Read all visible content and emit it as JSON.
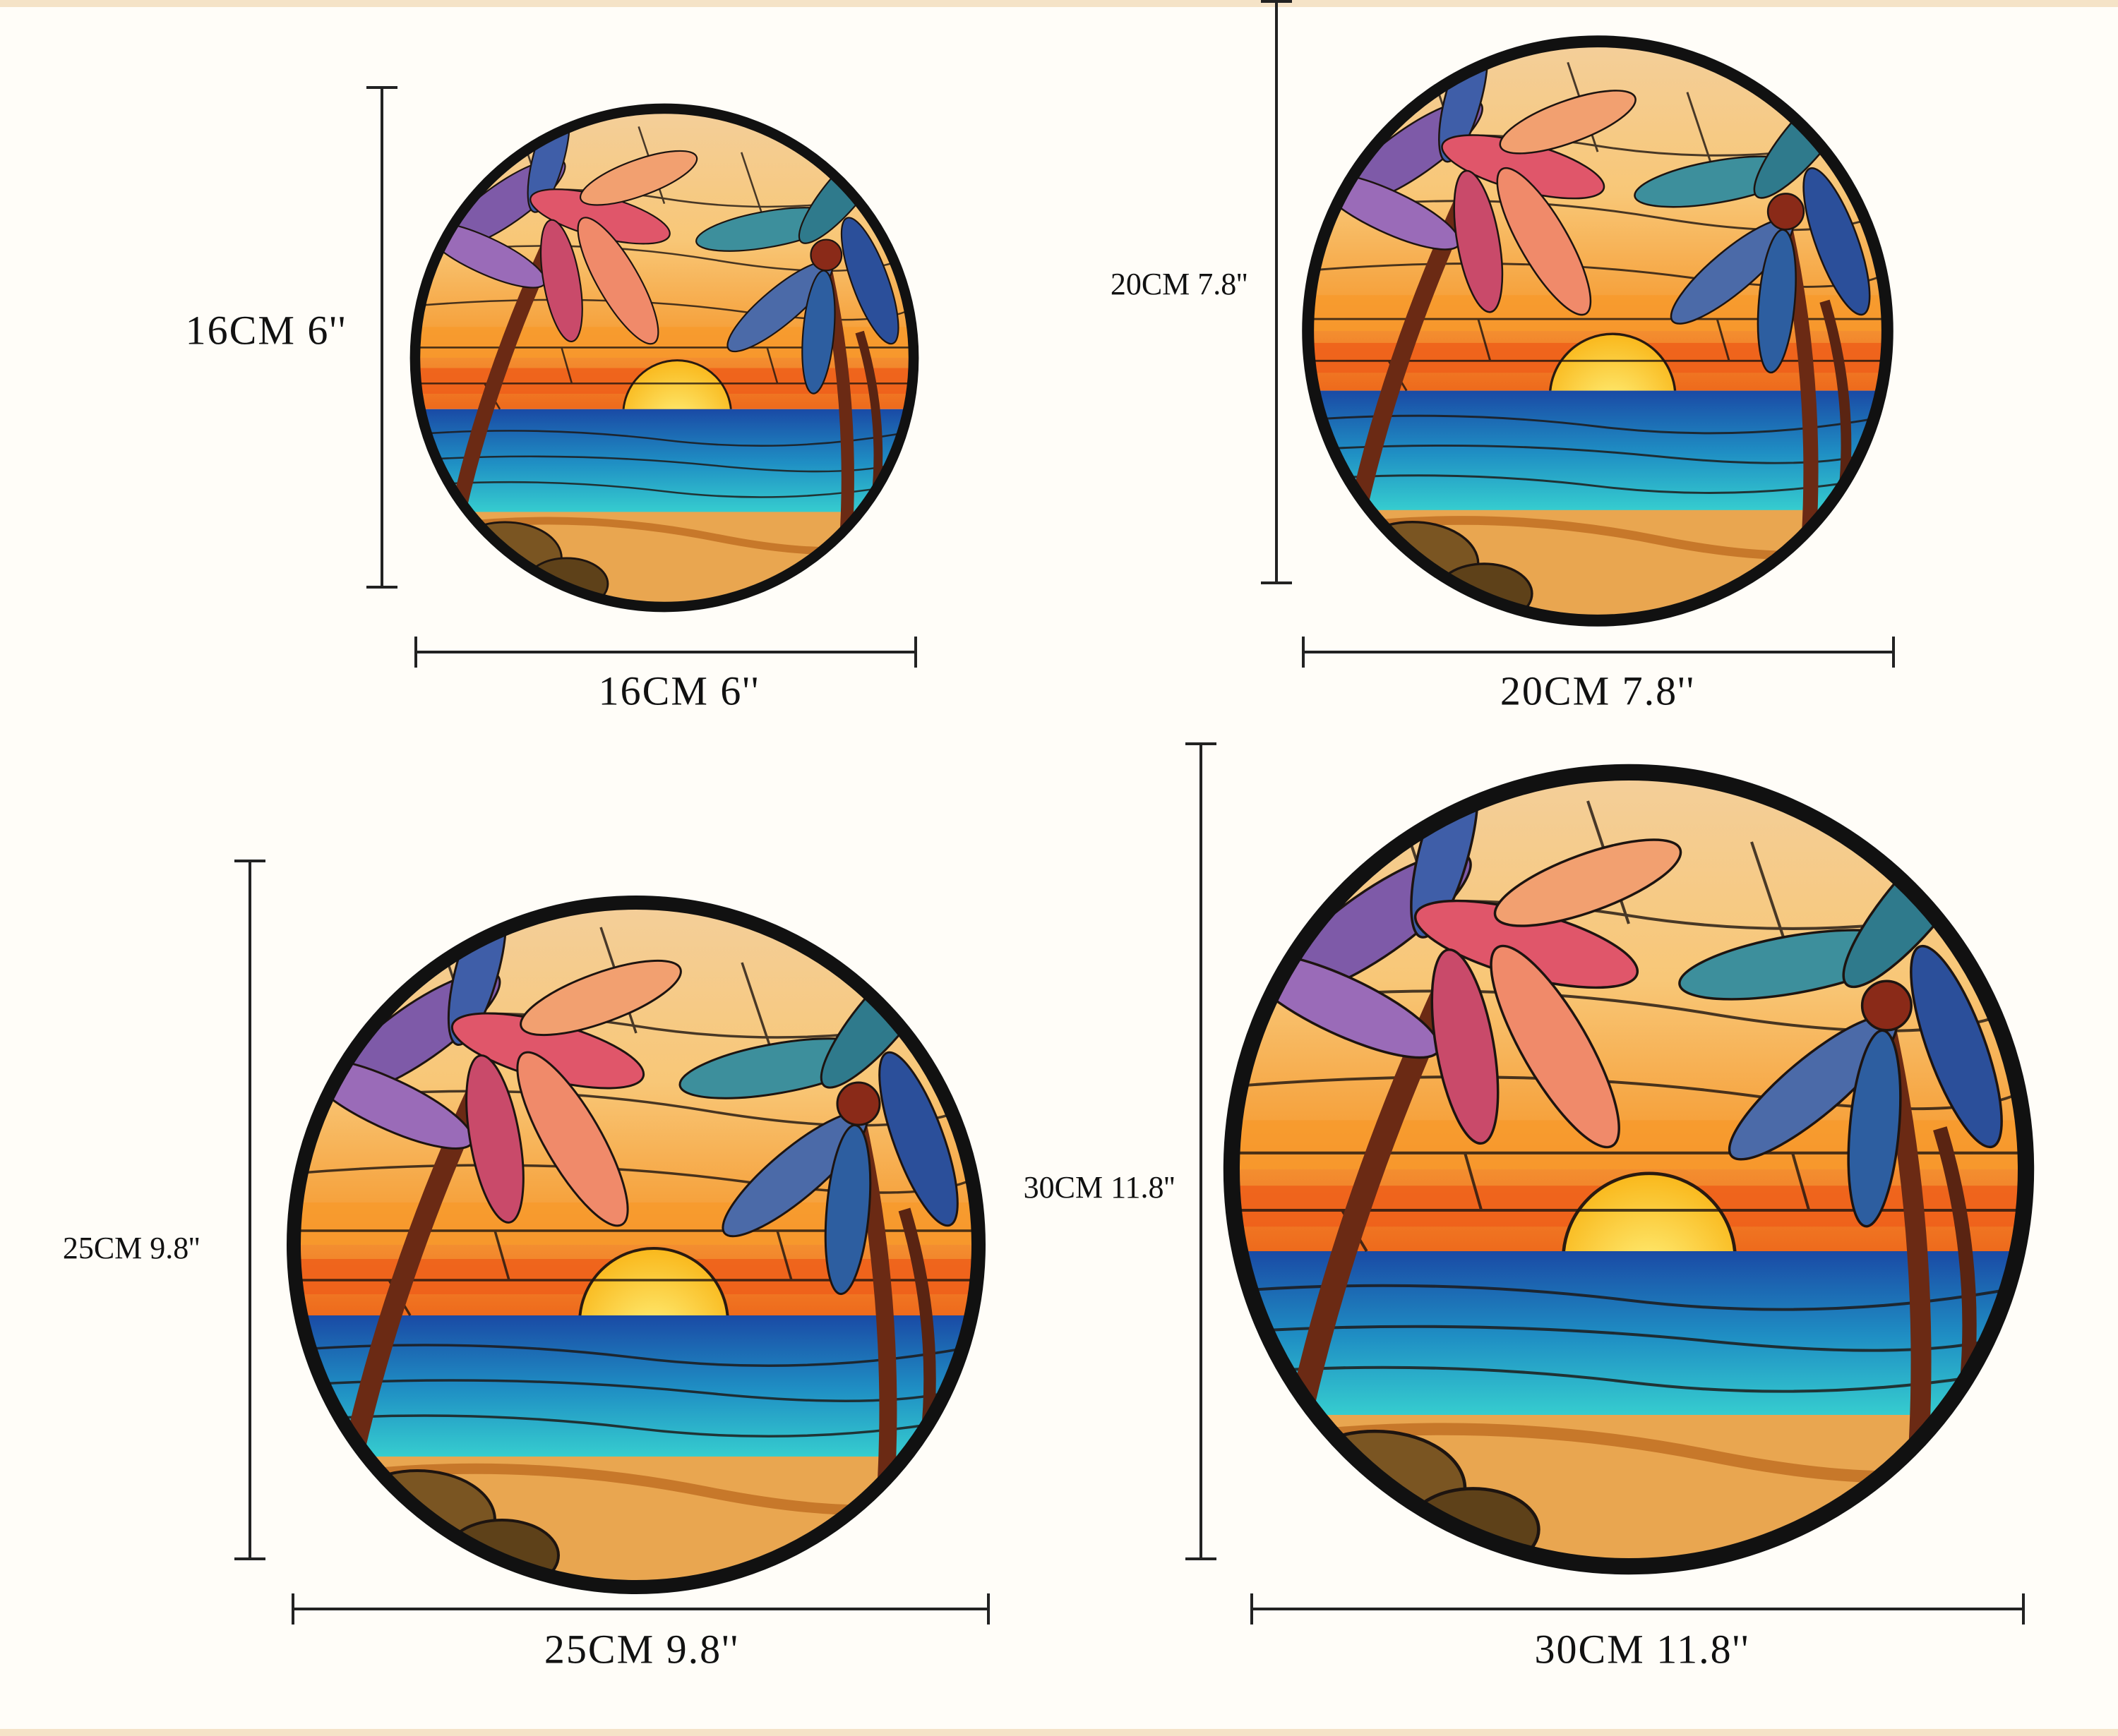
{
  "panels": [
    {
      "height_label": "16CM  6''",
      "width_label": "16CM  6''"
    },
    {
      "height_label": "20CM 7.8''",
      "width_label": "20CM  7.8''"
    },
    {
      "height_label": "25CM 9.8''",
      "width_label": "25CM  9.8''"
    },
    {
      "height_label": "30CM 11.8''",
      "width_label": "30CM  11.8''"
    }
  ]
}
